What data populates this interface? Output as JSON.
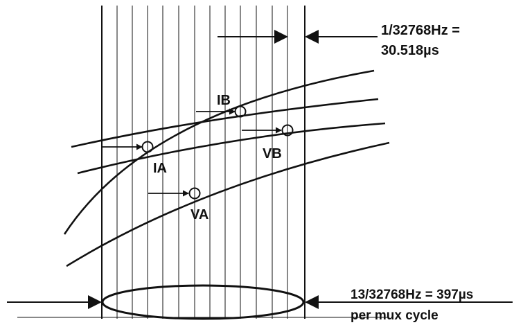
{
  "labels": {
    "period_top_line1": "1/32768Hz =",
    "period_top_line2": "30.518µs",
    "ia": "IA",
    "ib": "IB",
    "va": "VA",
    "vb": "VB",
    "cycle_line1": "13/32768Hz = 397µs",
    "cycle_line2": "per mux cycle"
  },
  "colors": {
    "ink": "#111111",
    "background": "#ffffff"
  }
}
